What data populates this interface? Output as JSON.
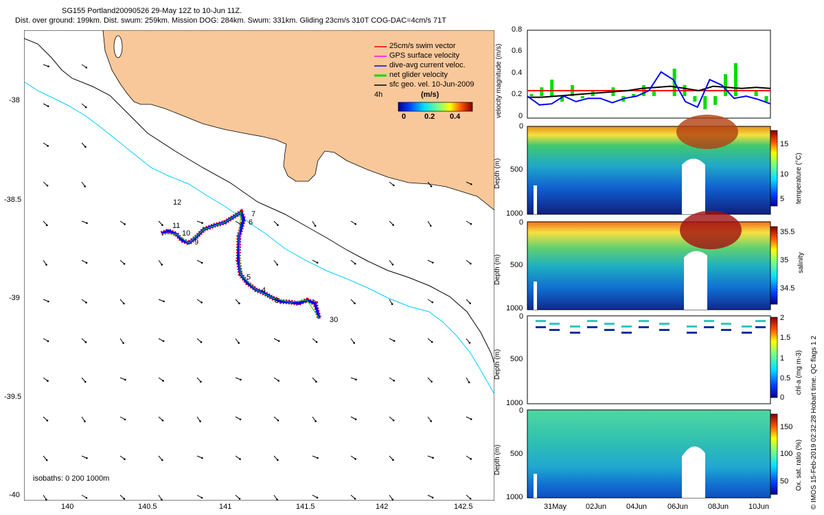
{
  "header": {
    "line1": "SG155 Portland20090526 29-May 12Z to 10-Jun 11Z.",
    "line2": "Dist. over ground: 199km. Dist. swum: 259km. Mission DOG: 284km. Swum: 331km. Gliding 23cm/s 310T COG-DAC=4cm/s 71T"
  },
  "colors": {
    "land": "#f9c89a",
    "swim_vector": "#ff0000",
    "gps_velocity": "#ff00ff",
    "dive_avg_current": "#0000ff",
    "net_glider": "#00dd00",
    "sfc_geo": "#000000",
    "isobath_200": "#00ccff",
    "isobath_1000": "#000000"
  },
  "map": {
    "xticks": [
      "140",
      "140.5",
      "141",
      "141.5",
      "142",
      "142.5"
    ],
    "yticks": [
      "-38",
      "-38.5",
      "-39",
      "-39.5",
      "-40"
    ],
    "xlim": [
      139.75,
      142.75
    ],
    "ylim": [
      -40.02,
      -37.68
    ],
    "legend": {
      "items": [
        "25cm/s swim vector",
        "GPS surface velocity",
        "dive-avg current veloc.",
        "net glider velocity",
        "sfc geo. vel. 10-Jun-2009"
      ],
      "scale_label": "4h",
      "cbar_title": "(m/s)",
      "cbar_ticks": [
        "0",
        "0.2",
        "0.4"
      ]
    },
    "isobath_note": "isobaths: 0   200   1000m",
    "track_labels": [
      "12",
      "11",
      "10",
      "9",
      "7",
      "6",
      "5",
      "4",
      "3",
      "30"
    ]
  },
  "chart_data": [
    {
      "type": "line",
      "ylabel": "velocity magnitude (m/s)",
      "ylim": [
        0,
        0.8
      ],
      "yticks": [
        "0",
        "0.2",
        "0.4",
        "0.6",
        "0.8"
      ],
      "series": [
        {
          "color": "#ff0000",
          "values": [
            0.25,
            0.25
          ]
        },
        {
          "color": "#000000",
          "values": [
            0.19,
            0.19,
            0.2,
            0.21,
            0.22,
            0.23,
            0.24,
            0.25,
            0.27,
            0.28,
            0.29,
            0.27,
            0.25,
            0.29,
            0.28,
            0.27,
            0.28,
            0.27
          ]
        },
        {
          "color": "#0000ff",
          "values": [
            0.2,
            0.12,
            0.13,
            0.2,
            0.15,
            0.18,
            0.18,
            0.14,
            0.18,
            0.2,
            0.25,
            0.42,
            0.35,
            0.15,
            0.1,
            0.35,
            0.3,
            0.18,
            0.2,
            0.17,
            0.13
          ]
        },
        {
          "color": "#00dd00",
          "values": [
            0.22,
            0.28,
            0.35,
            0.15,
            0.3,
            0.18,
            0.25,
            0.2,
            0.28,
            0.15,
            0.22,
            0.3,
            0.25,
            0.2,
            0.45,
            0.3,
            0.15,
            0.08,
            0.12,
            0.4,
            0.5,
            0.2,
            0.25,
            0.15
          ]
        }
      ]
    },
    {
      "type": "heatmap",
      "ylabel": "Depth (m)",
      "cbar_label": "temperature (°C)",
      "cbar_ticks": [
        "15",
        "10",
        "5"
      ],
      "yticks": [
        "0",
        "500",
        "1000"
      ]
    },
    {
      "type": "heatmap",
      "ylabel": "Depth (m)",
      "cbar_label": "salinity",
      "cbar_ticks": [
        "35.5",
        "35",
        "34.5"
      ],
      "yticks": [
        "0",
        "500",
        "1000"
      ]
    },
    {
      "type": "scatter",
      "ylabel": "Depth (m)",
      "cbar_label": "chl-a (mg m-3)",
      "cbar_ticks": [
        "2",
        "1.5",
        "1",
        "0.5",
        "0"
      ],
      "yticks": [
        "0",
        "500",
        "1000"
      ]
    },
    {
      "type": "heatmap",
      "ylabel": "Depth (m)",
      "cbar_label": "Ox. sat. ratio (%)",
      "cbar_ticks": [
        "150",
        "100",
        "50"
      ],
      "yticks": [
        "0",
        "500",
        "1000"
      ],
      "xticks": [
        "31May",
        "02Jun",
        "04Jun",
        "06Jun",
        "08Jun",
        "10Jun"
      ]
    }
  ],
  "side_note": "© IMOS 15-Feb-2019 02:32:28 Hobart time. QC flags 1  2"
}
